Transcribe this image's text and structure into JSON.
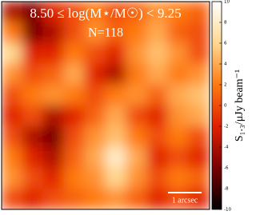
{
  "chart_data": {
    "type": "heatmap",
    "title": "8.50 ≤ log(M⋆/M☉) < 9.25",
    "subtitle": "N=118",
    "annotation": "1 arcsec",
    "colorbar_label": "S₁.₃/μJy beam⁻¹",
    "colormap": [
      "#000000",
      "#7a0000",
      "#e02000",
      "#ff7a10",
      "#ffd890",
      "#ffffff"
    ],
    "zlim": [
      -10,
      10
    ],
    "zticks": [
      -10,
      -8,
      -6,
      -4,
      -2,
      0,
      2,
      4,
      6,
      8,
      10
    ],
    "values": [
      [
        -4,
        -6,
        -2,
        0,
        2,
        0,
        1,
        3,
        2,
        1
      ],
      [
        2,
        -6,
        -4,
        0,
        3,
        1,
        2,
        4,
        1,
        0
      ],
      [
        6,
        -2,
        -2,
        2,
        0,
        -2,
        3,
        5,
        3,
        0
      ],
      [
        3,
        0,
        1,
        4,
        -2,
        -4,
        2,
        4,
        2,
        3
      ],
      [
        0,
        2,
        3,
        2,
        0,
        2,
        3,
        1,
        4,
        5
      ],
      [
        -2,
        0,
        -4,
        -2,
        1,
        4,
        0,
        -2,
        3,
        4
      ],
      [
        0,
        -4,
        -6,
        0,
        3,
        5,
        2,
        0,
        2,
        0
      ],
      [
        2,
        -2,
        -4,
        1,
        4,
        8,
        4,
        -2,
        0,
        -2
      ],
      [
        3,
        0,
        -2,
        2,
        3,
        6,
        3,
        0,
        2,
        1
      ],
      [
        0,
        -2,
        0,
        1,
        2,
        3,
        1,
        -2,
        0,
        -2
      ]
    ]
  }
}
